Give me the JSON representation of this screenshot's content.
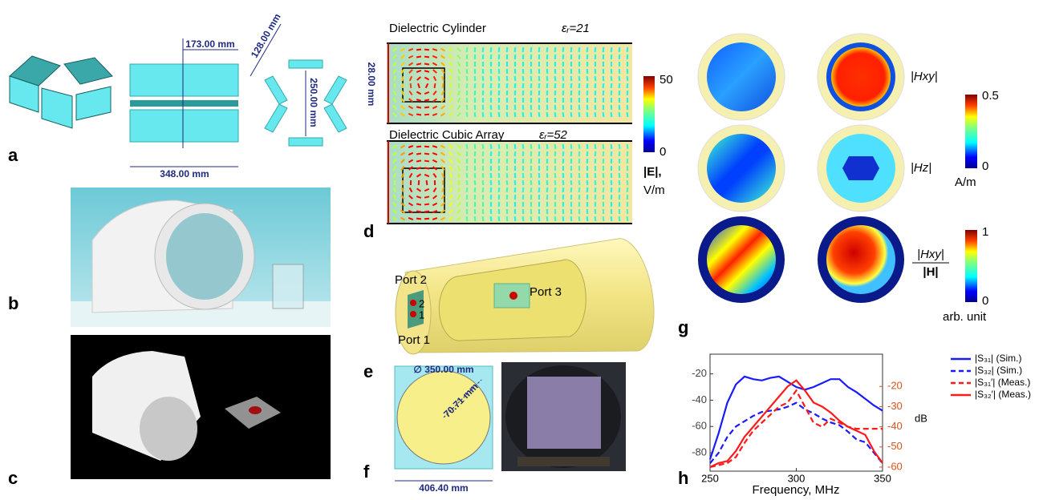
{
  "panels": {
    "a": {
      "label": "a",
      "dims": {
        "top": "173.00 mm",
        "bottom": "348.00 mm",
        "side": "128.00 mm",
        "height": "250.00 mm",
        "thickness": "28.00 mm"
      }
    },
    "b": {
      "label": "b"
    },
    "c": {
      "label": "c"
    },
    "d": {
      "label": "d",
      "top_title": "Dielectric Cylinder",
      "top_eps": "εᵣ=21",
      "bottom_title": "Dielectric Cubic Array",
      "bottom_eps": "εᵣ=52",
      "colorbar": {
        "max": 50,
        "min": 0,
        "unit_1": "|E|,",
        "unit_2": "V/m"
      }
    },
    "e": {
      "label": "e",
      "ports": [
        "Port 2",
        "Port 1",
        "Port 3"
      ],
      "pins": [
        "2",
        "1"
      ]
    },
    "f": {
      "label": "f",
      "diameter": "∅ 350.00 mm",
      "radius": "70.71 mm",
      "side": "406.40 mm"
    },
    "g": {
      "label": "g",
      "row_1": "|Hxy|",
      "row_2": "|Hz|",
      "ratio_num": "|Hxy|",
      "ratio_den": "|H|",
      "colorbar_1": {
        "max": 0.5,
        "min": 0,
        "unit": "A/m"
      },
      "colorbar_2": {
        "max": 1,
        "min": 0,
        "unit": "arb. unit"
      }
    },
    "h": {
      "label": "h"
    }
  },
  "chart_data": {
    "type": "line",
    "x_label": "Frequency, MHz",
    "y2_label": "dB",
    "x": [
      250,
      255,
      260,
      265,
      270,
      275,
      280,
      285,
      290,
      295,
      300,
      305,
      310,
      315,
      320,
      325,
      330,
      335,
      340,
      345,
      350
    ],
    "xlim": [
      250,
      350
    ],
    "xticks": [
      250,
      300,
      350
    ],
    "ylim": [
      -94,
      -5
    ],
    "yticks": [
      -20,
      -40,
      -60,
      -80
    ],
    "y2lim": [
      -62,
      -4
    ],
    "y2ticks": [
      -20,
      -30,
      -40,
      -50,
      -60
    ],
    "series": [
      {
        "name": "|S₃₁|   (Sim.)",
        "color": "#1a1aff",
        "linestyle": "solid",
        "values": [
          -85,
          -65,
          -42,
          -28,
          -22,
          -24,
          -25,
          -23,
          -22,
          -26,
          -30,
          -32,
          -30,
          -27,
          -24,
          -24,
          -30,
          -34,
          -39,
          -44,
          -48
        ]
      },
      {
        "name": "|S₃₂|   (Sim.)",
        "color": "#1a1aff",
        "linestyle": "dashed",
        "values": [
          -88,
          -80,
          -68,
          -60,
          -56,
          -52,
          -49,
          -48,
          -47,
          -45,
          -42,
          -47,
          -50,
          -54,
          -57,
          -59,
          -64,
          -70,
          -72,
          -80,
          -88
        ]
      },
      {
        "name": "|S₃₁′| (Meas.)",
        "color": "#ff1a1a",
        "linestyle": "dashed",
        "axis": "y2",
        "values": [
          -60,
          -59,
          -58,
          -55,
          -48,
          -42,
          -38,
          -34,
          -30,
          -28,
          -22,
          -30,
          -38,
          -40,
          -36,
          -38,
          -40,
          -41,
          -41,
          -41,
          -41
        ]
      },
      {
        "name": "|S₃₂′| (Meas.)",
        "color": "#ff1a1a",
        "linestyle": "solid",
        "axis": "y2",
        "values": [
          -60,
          -58,
          -57,
          -52,
          -45,
          -40,
          -35,
          -30,
          -25,
          -20,
          -17,
          -22,
          -28,
          -30,
          -33,
          -37,
          -40,
          -42,
          -44,
          -52,
          -58
        ]
      }
    ]
  }
}
